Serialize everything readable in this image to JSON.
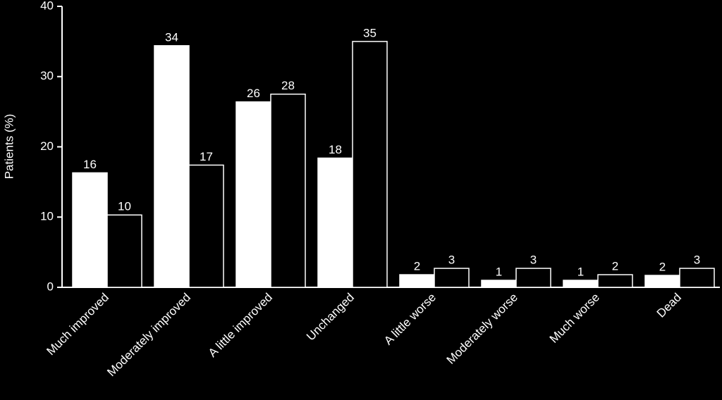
{
  "chart_data": {
    "type": "bar",
    "ylabel": "Patients (%)",
    "categories": [
      "Much improved",
      "Moderately improved",
      "A little improved",
      "Unchanged",
      "A little worse",
      "Moderately worse",
      "Much worse",
      "Dead"
    ],
    "series": [
      {
        "color": "#ffffff",
        "values": [
          16.3,
          34.4,
          26.4,
          18.4,
          1.8,
          1.0,
          1.0,
          1.7
        ],
        "value_labels": [
          "16",
          "34",
          "26",
          "18",
          "2",
          "1",
          "1",
          "2"
        ]
      },
      {
        "color": "#000000",
        "values": [
          10.3,
          17.4,
          27.5,
          35.0,
          2.7,
          2.7,
          1.8,
          2.7
        ],
        "value_labels": [
          "10",
          "17",
          "28",
          "35",
          "3",
          "3",
          "2",
          "3"
        ]
      }
    ],
    "edgecolor": "#ffffff",
    "ylim": [
      0,
      40
    ],
    "yticks": [
      0,
      10,
      20,
      30,
      40
    ]
  }
}
